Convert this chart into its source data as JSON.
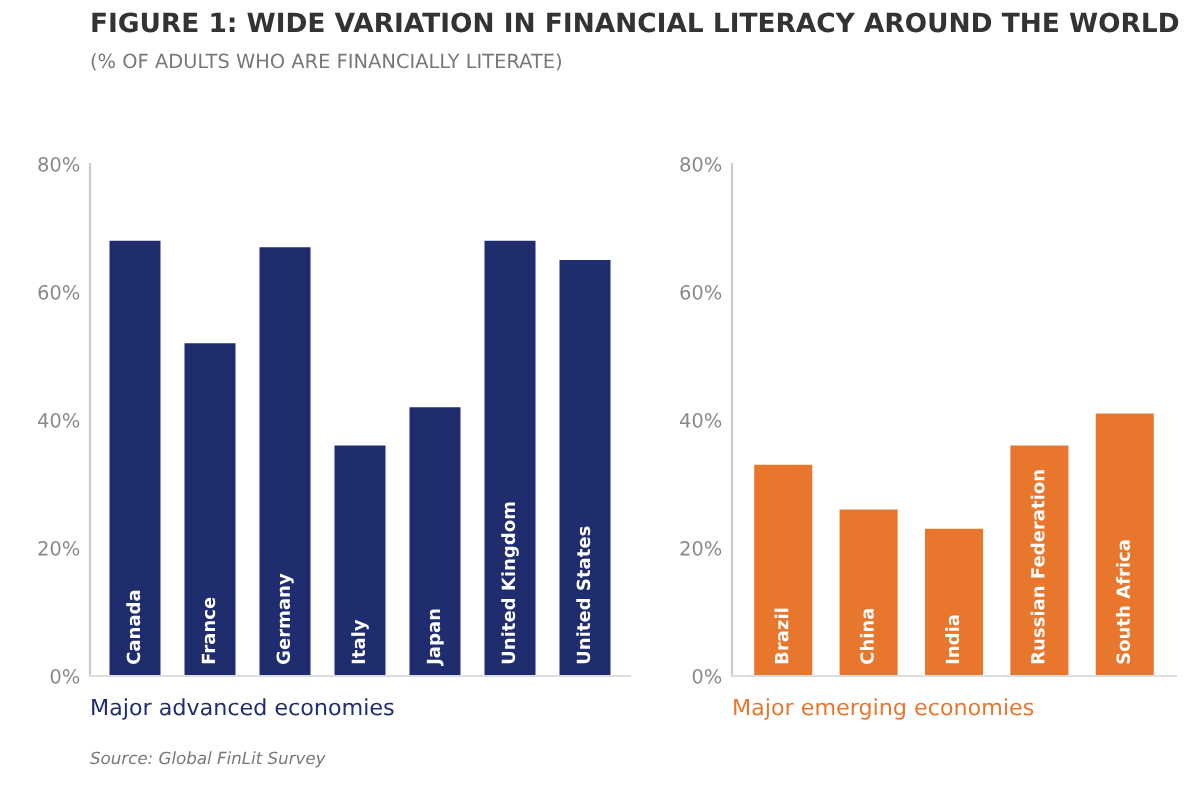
{
  "chart_data": [
    {
      "type": "bar",
      "title": "FIGURE 1: WIDE VARIATION IN FINANCIAL LITERACY AROUND THE WORLD",
      "subtitle": "(% OF ADULTS WHO ARE FINANCIALLY LITERATE)",
      "categories": [
        "Canada",
        "France",
        "Germany",
        "Italy",
        "Japan",
        "United Kingdom",
        "United States"
      ],
      "values": [
        68,
        52,
        67,
        36,
        42,
        68,
        65
      ],
      "color": "#1f2d6e",
      "ylim": [
        0,
        80
      ],
      "yticks": [
        {
          "value": 0,
          "label": "0%"
        },
        {
          "value": 20,
          "label": "20%"
        },
        {
          "value": 40,
          "label": "40%"
        },
        {
          "value": 60,
          "label": "60%"
        },
        {
          "value": 80,
          "label": "80%"
        }
      ],
      "xlabel": "Major advanced economies",
      "annotations": [
        "Source: Global FinLit Survey"
      ],
      "grid": false
    },
    {
      "type": "bar",
      "categories": [
        "Brazil",
        "China",
        "India",
        "Russian Federation",
        "South Africa"
      ],
      "values": [
        33,
        26,
        23,
        36,
        41
      ],
      "color": "#e8762d",
      "ylim": [
        0,
        80
      ],
      "yticks": [
        {
          "value": 0,
          "label": "0%"
        },
        {
          "value": 20,
          "label": "20%"
        },
        {
          "value": 40,
          "label": "40%"
        },
        {
          "value": 60,
          "label": "60%"
        },
        {
          "value": 80,
          "label": "80%"
        }
      ],
      "xlabel": "Major emerging economies",
      "grid": false
    }
  ]
}
